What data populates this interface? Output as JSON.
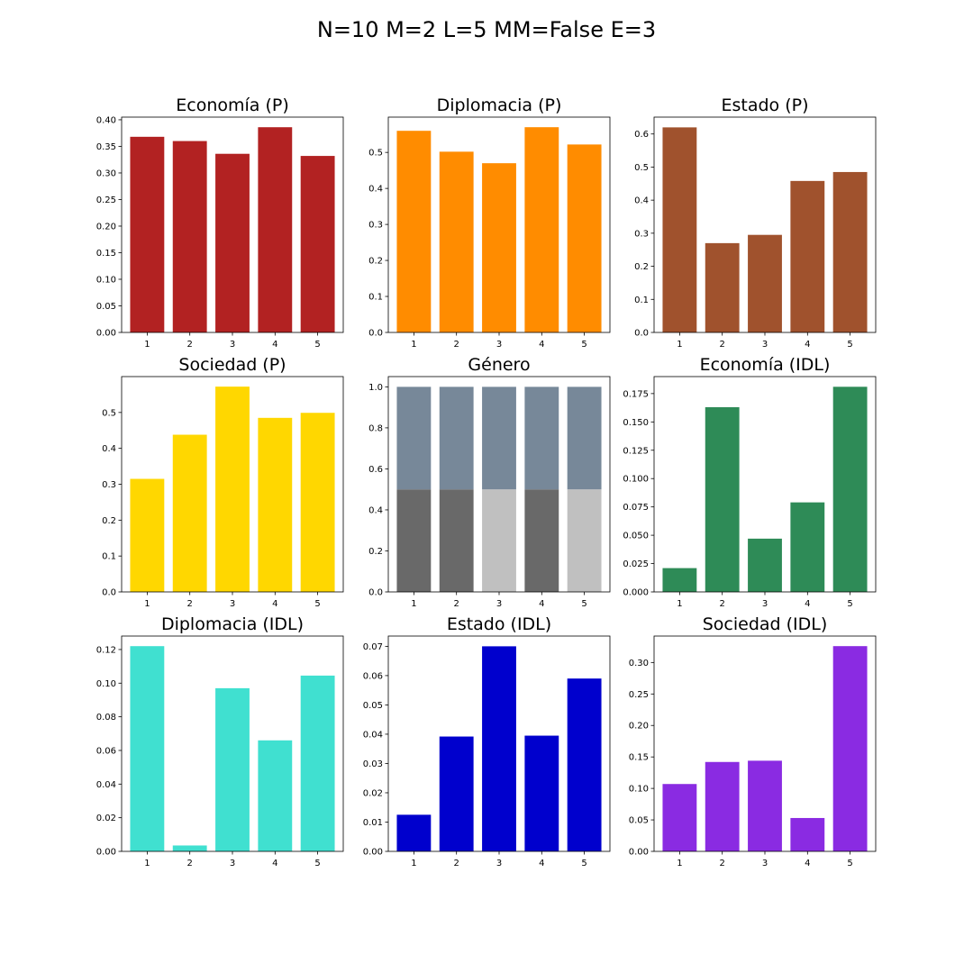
{
  "suptitle": "N=10 M=2 L=5 MM=False E=3",
  "chart_data": [
    {
      "type": "bar",
      "title": "Economía (P)",
      "categories": [
        "1",
        "2",
        "3",
        "4",
        "5"
      ],
      "values": [
        0.368,
        0.36,
        0.336,
        0.386,
        0.332
      ],
      "ylim": [
        0,
        0.405
      ],
      "yticks": [
        0.0,
        0.05,
        0.1,
        0.15,
        0.2,
        0.25,
        0.3,
        0.35,
        0.4
      ],
      "ytick_labels": [
        "0.00",
        "0.05",
        "0.10",
        "0.15",
        "0.20",
        "0.25",
        "0.30",
        "0.35",
        "0.40"
      ],
      "color": "#b22222",
      "grid": false
    },
    {
      "type": "bar",
      "title": "Diplomacia (P)",
      "categories": [
        "1",
        "2",
        "3",
        "4",
        "5"
      ],
      "values": [
        0.56,
        0.502,
        0.47,
        0.57,
        0.522
      ],
      "ylim": [
        0,
        0.598
      ],
      "yticks": [
        0.0,
        0.1,
        0.2,
        0.3,
        0.4,
        0.5
      ],
      "ytick_labels": [
        "0.0",
        "0.1",
        "0.2",
        "0.3",
        "0.4",
        "0.5"
      ],
      "color": "#ff8c00",
      "grid": false
    },
    {
      "type": "bar",
      "title": "Estado (P)",
      "categories": [
        "1",
        "2",
        "3",
        "4",
        "5"
      ],
      "values": [
        0.62,
        0.27,
        0.295,
        0.458,
        0.485
      ],
      "ylim": [
        0,
        0.651
      ],
      "yticks": [
        0.0,
        0.1,
        0.2,
        0.3,
        0.4,
        0.5,
        0.6
      ],
      "ytick_labels": [
        "0.0",
        "0.1",
        "0.2",
        "0.3",
        "0.4",
        "0.5",
        "0.6"
      ],
      "color": "#a0522d",
      "grid": false
    },
    {
      "type": "bar",
      "title": "Sociedad (P)",
      "categories": [
        "1",
        "2",
        "3",
        "4",
        "5"
      ],
      "values": [
        0.315,
        0.438,
        0.572,
        0.485,
        0.499
      ],
      "ylim": [
        0,
        0.6
      ],
      "yticks": [
        0.0,
        0.1,
        0.2,
        0.3,
        0.4,
        0.5
      ],
      "ytick_labels": [
        "0.0",
        "0.1",
        "0.2",
        "0.3",
        "0.4",
        "0.5"
      ],
      "color": "#ffd700",
      "grid": false
    },
    {
      "type": "bar",
      "stacked": true,
      "title": "Género",
      "categories": [
        "1",
        "2",
        "3",
        "4",
        "5"
      ],
      "series": [
        {
          "values": [
            0.5,
            0.5,
            0.5,
            0.5,
            0.5
          ],
          "colors": [
            "#696969",
            "#696969",
            "#c0c0c0",
            "#696969",
            "#c0c0c0"
          ]
        },
        {
          "values": [
            0.5,
            0.5,
            0.5,
            0.5,
            0.5
          ],
          "colors": [
            "#778899",
            "#778899",
            "#778899",
            "#778899",
            "#778899"
          ]
        }
      ],
      "ylim": [
        0,
        1.05
      ],
      "yticks": [
        0.0,
        0.2,
        0.4,
        0.6,
        0.8,
        1.0
      ],
      "ytick_labels": [
        "0.0",
        "0.2",
        "0.4",
        "0.6",
        "0.8",
        "1.0"
      ],
      "grid": false
    },
    {
      "type": "bar",
      "title": "Economía (IDL)",
      "categories": [
        "1",
        "2",
        "3",
        "4",
        "5"
      ],
      "values": [
        0.021,
        0.163,
        0.047,
        0.079,
        0.181
      ],
      "ylim": [
        0,
        0.19
      ],
      "yticks": [
        0.0,
        0.025,
        0.05,
        0.075,
        0.1,
        0.125,
        0.15,
        0.175
      ],
      "ytick_labels": [
        "0.000",
        "0.025",
        "0.050",
        "0.075",
        "0.100",
        "0.125",
        "0.150",
        "0.175"
      ],
      "color": "#2e8b57",
      "grid": false
    },
    {
      "type": "bar",
      "title": "Diplomacia (IDL)",
      "categories": [
        "1",
        "2",
        "3",
        "4",
        "5"
      ],
      "values": [
        0.122,
        0.0035,
        0.097,
        0.066,
        0.1045
      ],
      "ylim": [
        0,
        0.128
      ],
      "yticks": [
        0.0,
        0.02,
        0.04,
        0.06,
        0.08,
        0.1,
        0.12
      ],
      "ytick_labels": [
        "0.00",
        "0.02",
        "0.04",
        "0.06",
        "0.08",
        "0.10",
        "0.12"
      ],
      "color": "#40e0d0",
      "grid": false
    },
    {
      "type": "bar",
      "title": "Estado (IDL)",
      "categories": [
        "1",
        "2",
        "3",
        "4",
        "5"
      ],
      "values": [
        0.0125,
        0.0392,
        0.07,
        0.0395,
        0.059
      ],
      "ylim": [
        0,
        0.0735
      ],
      "yticks": [
        0.0,
        0.01,
        0.02,
        0.03,
        0.04,
        0.05,
        0.06,
        0.07
      ],
      "ytick_labels": [
        "0.00",
        "0.01",
        "0.02",
        "0.03",
        "0.04",
        "0.05",
        "0.06",
        "0.07"
      ],
      "color": "#0000cd",
      "grid": false
    },
    {
      "type": "bar",
      "title": "Sociedad (IDL)",
      "categories": [
        "1",
        "2",
        "3",
        "4",
        "5"
      ],
      "values": [
        0.107,
        0.142,
        0.144,
        0.053,
        0.326
      ],
      "ylim": [
        0,
        0.342
      ],
      "yticks": [
        0.0,
        0.05,
        0.1,
        0.15,
        0.2,
        0.25,
        0.3
      ],
      "ytick_labels": [
        "0.00",
        "0.05",
        "0.10",
        "0.15",
        "0.20",
        "0.25",
        "0.30"
      ],
      "color": "#8a2be2",
      "grid": false
    }
  ]
}
